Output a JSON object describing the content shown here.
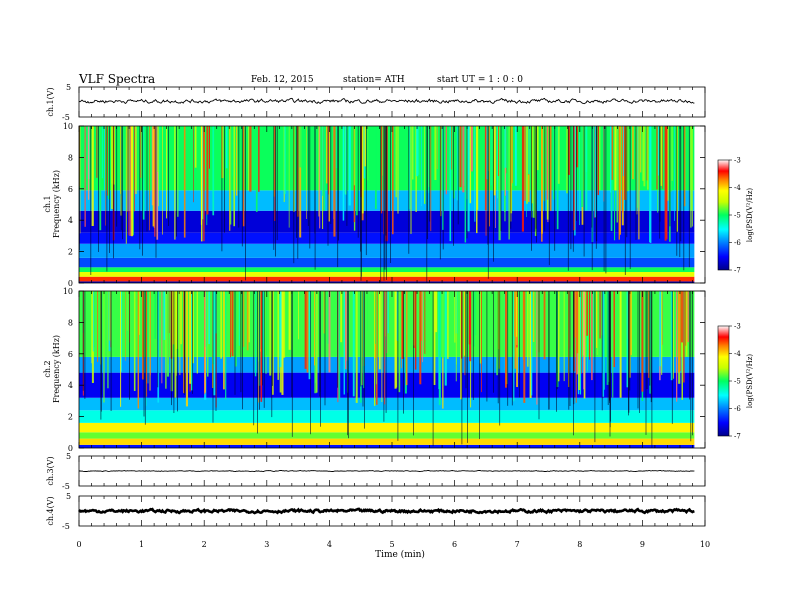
{
  "header": {
    "title": "VLF  Spectra",
    "date": "Feb. 12, 2015",
    "station": "station= ATH",
    "start_ut": "start  UT  =    1  : 0  : 0"
  },
  "panels": {
    "ch1_wave": {
      "ylabel": "ch.1(V)",
      "ticks": [
        "5",
        "-5"
      ]
    },
    "ch1_spec": {
      "ylabel_top": "ch.1",
      "ylabel": "Frequency  (kHz)",
      "ticks": [
        "10",
        "8",
        "6",
        "4",
        "2",
        "0"
      ]
    },
    "ch2_spec": {
      "ylabel_top": "ch.2",
      "ylabel": "Frequency  (kHz)",
      "ticks": [
        "10",
        "8",
        "6",
        "4",
        "2",
        "0"
      ]
    },
    "ch3_wave": {
      "ylabel": "ch.3(V)",
      "ticks": [
        "5",
        "-5"
      ]
    },
    "ch4_wave": {
      "ylabel": "ch.4(V)",
      "ticks": [
        "5",
        "-5"
      ]
    }
  },
  "colorbar": {
    "label": "log(PSD(V²/Hz)",
    "ticks": [
      "-3",
      "-4",
      "-5",
      "-6",
      "-7"
    ]
  },
  "xaxis": {
    "label": "Time  (min)",
    "ticks": [
      "0",
      "1",
      "2",
      "3",
      "4",
      "5",
      "6",
      "7",
      "8",
      "9",
      "10"
    ]
  },
  "chart_data": {
    "type": "heatmap",
    "x_units": "min",
    "xlim": [
      0,
      10
    ],
    "data_end_min": 9.83,
    "waveform_ylim": [
      -5,
      5
    ],
    "frequency_ylim_khz": [
      0,
      10
    ],
    "color_scale_log_psd": [
      -7,
      -3
    ],
    "colormap": [
      "#00008a",
      "#0000ff",
      "#0080ff",
      "#00ffff",
      "#00ff60",
      "#c8ff00",
      "#ffff00",
      "#ff8000",
      "#ff0000",
      "#ffffff"
    ],
    "waveforms": [
      {
        "channel": "ch.1",
        "mean_v": 0.3,
        "spread_v": 0.6
      },
      {
        "channel": "ch.3",
        "mean_v": 0.0,
        "spread_v": 0.2
      },
      {
        "channel": "ch.4",
        "mean_v": 0.0,
        "spread_v": 0.25
      }
    ],
    "spectrograms": [
      {
        "channel": "ch.1",
        "bands": [
          {
            "f_low_khz": 0.0,
            "f_high_khz": 0.1,
            "log_psd": -6.8
          },
          {
            "f_low_khz": 0.1,
            "f_high_khz": 0.4,
            "log_psd": -3.6
          },
          {
            "f_low_khz": 0.4,
            "f_high_khz": 0.7,
            "log_psd": -4.5
          },
          {
            "f_low_khz": 0.7,
            "f_high_khz": 1.0,
            "log_psd": -5.2
          },
          {
            "f_low_khz": 1.0,
            "f_high_khz": 1.6,
            "log_psd": -6.3
          },
          {
            "f_low_khz": 1.6,
            "f_high_khz": 2.5,
            "log_psd": -6.0
          },
          {
            "f_low_khz": 2.5,
            "f_high_khz": 3.2,
            "log_psd": -6.5
          },
          {
            "f_low_khz": 3.2,
            "f_high_khz": 4.6,
            "log_psd": -6.7
          },
          {
            "f_low_khz": 4.6,
            "f_high_khz": 5.9,
            "log_psd": -5.9
          },
          {
            "f_low_khz": 5.9,
            "f_high_khz": 10.0,
            "log_psd": -5.2
          }
        ]
      },
      {
        "channel": "ch.2",
        "bands": [
          {
            "f_low_khz": 0.0,
            "f_high_khz": 0.2,
            "log_psd": -6.5
          },
          {
            "f_low_khz": 0.2,
            "f_high_khz": 0.6,
            "log_psd": -4.2
          },
          {
            "f_low_khz": 0.6,
            "f_high_khz": 1.0,
            "log_psd": -5.0
          },
          {
            "f_low_khz": 1.0,
            "f_high_khz": 1.6,
            "log_psd": -4.3
          },
          {
            "f_low_khz": 1.6,
            "f_high_khz": 2.4,
            "log_psd": -5.6
          },
          {
            "f_low_khz": 2.4,
            "f_high_khz": 3.2,
            "log_psd": -5.9
          },
          {
            "f_low_khz": 3.2,
            "f_high_khz": 4.8,
            "log_psd": -6.6
          },
          {
            "f_low_khz": 4.8,
            "f_high_khz": 5.8,
            "log_psd": -6.0
          },
          {
            "f_low_khz": 5.8,
            "f_high_khz": 10.0,
            "log_psd": -5.1
          }
        ]
      }
    ]
  }
}
